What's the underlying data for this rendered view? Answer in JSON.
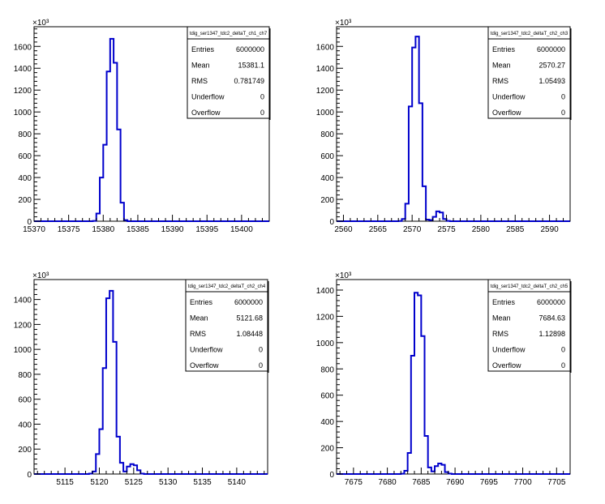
{
  "chart_data": [
    {
      "type": "histogram",
      "title": "tdig_ser1347_tdc2_deltaT_ch1_ch7",
      "multiplier_label": "×10³",
      "xlim": [
        15370,
        15404
      ],
      "ylim": [
        0,
        1780
      ],
      "x_ticks": [
        15370,
        15375,
        15380,
        15385,
        15390,
        15395,
        15400
      ],
      "y_ticks": [
        0,
        200,
        400,
        600,
        800,
        1000,
        1200,
        1400,
        1600
      ],
      "bin_width": 0.5,
      "bins_x": [
        15378.5,
        15379.0,
        15379.5,
        15380.0,
        15380.5,
        15381.0,
        15381.5,
        15382.0,
        15382.5,
        15383.0
      ],
      "bins_y": [
        3,
        70,
        400,
        700,
        1370,
        1670,
        1450,
        840,
        170,
        10
      ],
      "stats": [
        {
          "label": "Entries",
          "value": "6000000"
        },
        {
          "label": "Mean",
          "value": "15381.1"
        },
        {
          "label": "RMS",
          "value": "0.781749"
        },
        {
          "label": "Underflow",
          "value": "0"
        },
        {
          "label": "Overflow",
          "value": "0"
        }
      ]
    },
    {
      "type": "histogram",
      "title": "tdig_ser1347_tdc2_deltaT_ch2_ch3",
      "multiplier_label": "×10³",
      "xlim": [
        2559,
        2593
      ],
      "ylim": [
        0,
        1780
      ],
      "x_ticks": [
        2560,
        2565,
        2570,
        2575,
        2580,
        2585,
        2590
      ],
      "y_ticks": [
        0,
        200,
        400,
        600,
        800,
        1000,
        1200,
        1400,
        1600
      ],
      "bin_width": 0.5,
      "bins_x": [
        2568.0,
        2568.5,
        2569.0,
        2569.5,
        2570.0,
        2570.5,
        2571.0,
        2571.5,
        2572.0,
        2572.5,
        2573.0,
        2573.5,
        2574.0,
        2574.5,
        2575.0
      ],
      "bins_y": [
        2,
        20,
        160,
        1050,
        1590,
        1690,
        1080,
        320,
        15,
        10,
        40,
        90,
        80,
        20,
        3
      ],
      "stats": [
        {
          "label": "Entries",
          "value": "6000000"
        },
        {
          "label": "Mean",
          "value": "2570.27"
        },
        {
          "label": "RMS",
          "value": "1.05493"
        },
        {
          "label": "Underflow",
          "value": "0"
        },
        {
          "label": "Overflow",
          "value": "0"
        }
      ]
    },
    {
      "type": "histogram",
      "title": "tdig_ser1347_tdc2_deltaT_ch2_ch4",
      "multiplier_label": "×10³",
      "xlim": [
        5110.5,
        5144.5
      ],
      "ylim": [
        0,
        1560
      ],
      "x_ticks": [
        5115,
        5120,
        5125,
        5130,
        5135,
        5140
      ],
      "y_ticks": [
        0,
        200,
        400,
        600,
        800,
        1000,
        1200,
        1400
      ],
      "bin_width": 0.5,
      "bins_x": [
        5118.5,
        5119.0,
        5119.5,
        5120.0,
        5120.5,
        5121.0,
        5121.5,
        5122.0,
        5122.5,
        5123.0,
        5123.5,
        5124.0,
        5124.5,
        5125.0,
        5125.5,
        5126.0
      ],
      "bins_y": [
        3,
        20,
        160,
        360,
        850,
        1410,
        1470,
        1060,
        300,
        90,
        20,
        60,
        80,
        70,
        30,
        3
      ],
      "stats": [
        {
          "label": "Entries",
          "value": "6000000"
        },
        {
          "label": "Mean",
          "value": "5121.68"
        },
        {
          "label": "RMS",
          "value": "1.08448"
        },
        {
          "label": "Underflow",
          "value": "0"
        },
        {
          "label": "Overflow",
          "value": "0"
        }
      ]
    },
    {
      "type": "histogram",
      "title": "tdig_ser1347_tdc2_deltaT_ch2_ch5",
      "multiplier_label": "×10³",
      "xlim": [
        7672.5,
        7707
      ],
      "ylim": [
        0,
        1480
      ],
      "x_ticks": [
        7675,
        7680,
        7685,
        7690,
        7695,
        7700,
        7705
      ],
      "y_ticks": [
        0,
        200,
        400,
        600,
        800,
        1000,
        1200,
        1400
      ],
      "bin_width": 0.5,
      "bins_x": [
        7682.0,
        7682.5,
        7683.0,
        7683.5,
        7684.0,
        7684.5,
        7685.0,
        7685.5,
        7686.0,
        7686.5,
        7687.0,
        7687.5,
        7688.0,
        7688.5,
        7689.0
      ],
      "bins_y": [
        2,
        25,
        160,
        900,
        1380,
        1360,
        1050,
        290,
        50,
        20,
        60,
        80,
        70,
        15,
        3
      ],
      "stats": [
        {
          "label": "Entries",
          "value": "6000000"
        },
        {
          "label": "Mean",
          "value": "7684.63"
        },
        {
          "label": "RMS",
          "value": "1.12898"
        },
        {
          "label": "Underflow",
          "value": "0"
        },
        {
          "label": "Overflow",
          "value": "0"
        }
      ]
    }
  ]
}
